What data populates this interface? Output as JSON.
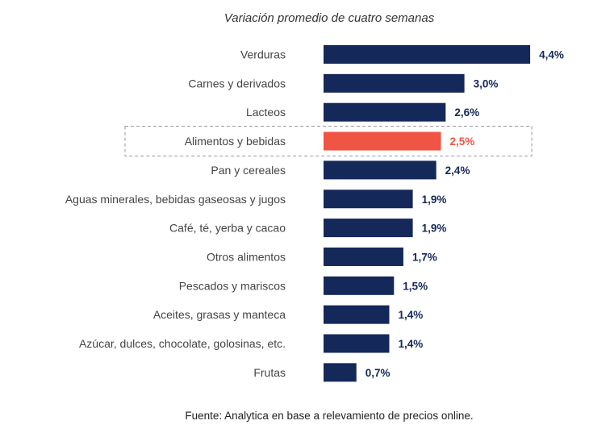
{
  "chart_data": {
    "type": "bar",
    "orientation": "horizontal",
    "title": "Variación promedio de cuatro semanas",
    "source": "Fuente: Analytica en base a relevamiento de precios online.",
    "categories": [
      "Verduras",
      "Carnes y derivados",
      "Lacteos",
      "Alimentos y bebidas",
      "Pan y cereales",
      "Aguas minerales, bebidas gaseosas y jugos",
      "Café, té, yerba y cacao",
      "Otros alimentos",
      "Pescados y mariscos",
      "Aceites, grasas y manteca",
      "Azúcar, dulces, chocolate, golosinas, etc.",
      "Frutas"
    ],
    "values": [
      4.4,
      3.0,
      2.6,
      2.5,
      2.4,
      1.9,
      1.9,
      1.7,
      1.5,
      1.4,
      1.4,
      0.7
    ],
    "value_labels": [
      "4,4%",
      "3,0%",
      "2,6%",
      "2,5%",
      "2,4%",
      "1,9%",
      "1,9%",
      "1,7%",
      "1,5%",
      "1,4%",
      "1,4%",
      "0,7%"
    ],
    "highlight_category": "Alimentos y bebidas",
    "colors": {
      "bar": "#15285a",
      "highlight": "#f05444",
      "box_border": "#9a9a9a"
    },
    "grid": false,
    "legend": "none"
  }
}
